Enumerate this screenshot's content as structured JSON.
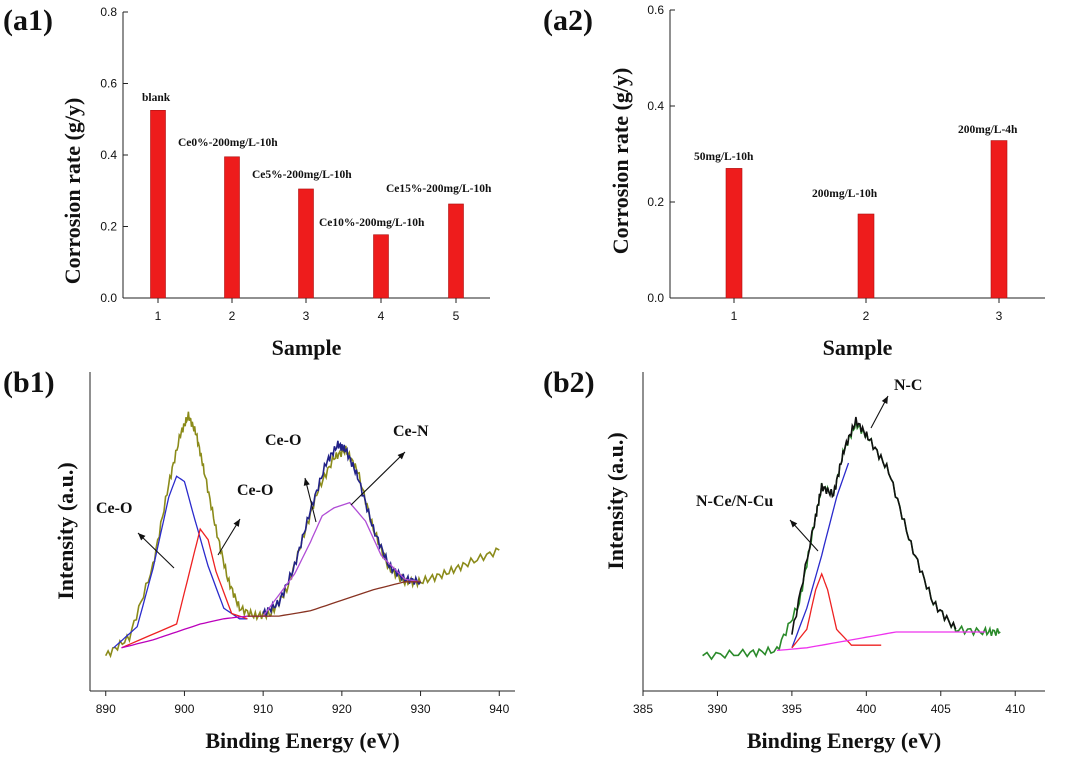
{
  "chart_data": [
    {
      "panel": "(a1)",
      "type": "bar",
      "xlabel": "Sample",
      "ylabel": "Corrosion rate (g/y)",
      "categories": [
        "1",
        "2",
        "3",
        "4",
        "5"
      ],
      "values": [
        0.525,
        0.395,
        0.305,
        0.177,
        0.263
      ],
      "bar_labels": [
        "blank",
        "Ce0%-200mg/L-10h",
        "Ce5%-200mg/L-10h",
        "Ce10%-200mg/L-10h",
        "Ce15%-200mg/L-10h"
      ],
      "ylim": [
        0,
        0.8
      ],
      "yticks": [
        "0.0",
        "0.2",
        "0.4",
        "0.6",
        "0.8"
      ],
      "color": "#ee1c1c"
    },
    {
      "panel": "(a2)",
      "type": "bar",
      "xlabel": "Sample",
      "ylabel": "Corrosion rate (g/y)",
      "categories": [
        "1",
        "2",
        "3"
      ],
      "values": [
        0.27,
        0.175,
        0.328
      ],
      "bar_labels": [
        "50mg/L-10h",
        "200mg/L-10h",
        "200mg/L-4h"
      ],
      "ylim": [
        0,
        0.6
      ],
      "yticks": [
        "0.0",
        "0.2",
        "0.4",
        "0.6"
      ],
      "color": "#ee1c1c"
    },
    {
      "panel": "(b1)",
      "type": "line",
      "xlabel": "Binding Energy (eV)",
      "ylabel": "Intensity (a.u.)",
      "xlim": [
        888,
        942
      ],
      "xticks": [
        "890",
        "900",
        "910",
        "920",
        "930",
        "940"
      ],
      "peak_labels": [
        "Ce-O",
        "Ce-O",
        "Ce-O",
        "Ce-N"
      ],
      "series": [
        {
          "color": "#8b8b1a",
          "x": [
            890,
            893,
            896,
            898,
            899.5,
            900.5,
            901.5,
            902.5,
            904,
            905.5,
            907,
            909,
            911,
            913,
            915,
            917,
            919,
            920.5,
            922,
            924,
            926,
            928,
            930,
            933,
            936,
            940
          ],
          "y": [
            0.02,
            0.09,
            0.36,
            0.67,
            0.86,
            0.93,
            0.86,
            0.72,
            0.5,
            0.31,
            0.2,
            0.17,
            0.18,
            0.27,
            0.46,
            0.65,
            0.77,
            0.8,
            0.72,
            0.5,
            0.35,
            0.3,
            0.3,
            0.33,
            0.37,
            0.42
          ]
        },
        {
          "color": "#222288",
          "x": [
            910,
            912,
            914,
            916,
            918,
            919.5,
            920.5,
            922,
            924,
            926,
            928,
            930
          ],
          "y": [
            0.18,
            0.22,
            0.36,
            0.57,
            0.75,
            0.82,
            0.8,
            0.7,
            0.5,
            0.36,
            0.31,
            0.3
          ]
        },
        {
          "color": "#2a2acc",
          "x": [
            891,
            894,
            896,
            898,
            899,
            900,
            901,
            903,
            905,
            907,
            908
          ],
          "y": [
            0.05,
            0.13,
            0.35,
            0.62,
            0.7,
            0.68,
            0.57,
            0.36,
            0.2,
            0.16,
            0.16
          ]
        },
        {
          "color": "#ee2222",
          "x": [
            892,
            899,
            901,
            902,
            903,
            904,
            906,
            908
          ],
          "y": [
            0.05,
            0.14,
            0.38,
            0.5,
            0.46,
            0.34,
            0.18,
            0.16
          ]
        },
        {
          "color": "#b04dd6",
          "x": [
            910,
            914,
            916,
            917.5,
            919,
            921,
            923,
            925,
            928,
            930
          ],
          "y": [
            0.17,
            0.33,
            0.45,
            0.55,
            0.58,
            0.6,
            0.53,
            0.4,
            0.31,
            0.3
          ]
        },
        {
          "color": "#bb00bb",
          "x": [
            892,
            896,
            899,
            902,
            905,
            908,
            911
          ],
          "y": [
            0.05,
            0.08,
            0.11,
            0.14,
            0.16,
            0.17,
            0.17
          ]
        },
        {
          "color": "#883322",
          "x": [
            908,
            912,
            916,
            920,
            924,
            928,
            930
          ],
          "y": [
            0.17,
            0.17,
            0.19,
            0.23,
            0.27,
            0.3,
            0.3
          ]
        }
      ]
    },
    {
      "panel": "(b2)",
      "type": "line",
      "xlabel": "Binding Energy (eV)",
      "ylabel": "Intensity (a.u.)",
      "xlim": [
        385,
        412
      ],
      "xticks": [
        "385",
        "390",
        "395",
        "400",
        "405",
        "410"
      ],
      "peak_labels": [
        "N-Ce/N-Cu",
        "N-C"
      ],
      "series": [
        {
          "color": "#2a8a2a",
          "x": [
            389,
            392,
            394,
            395.5,
            396.5,
            397,
            397.8,
            398.5,
            399.3,
            400.2,
            401.5,
            403,
            404.5,
            406,
            408,
            409
          ],
          "y": [
            0.02,
            0.03,
            0.04,
            0.22,
            0.52,
            0.66,
            0.63,
            0.8,
            0.9,
            0.84,
            0.72,
            0.44,
            0.22,
            0.12,
            0.11,
            0.11
          ]
        },
        {
          "color": "#111111",
          "x": [
            395,
            396.5,
            397,
            397.8,
            398.5,
            399.3,
            400.2,
            401.5,
            403,
            404.5,
            406
          ],
          "y": [
            0.1,
            0.52,
            0.66,
            0.63,
            0.8,
            0.91,
            0.84,
            0.72,
            0.44,
            0.22,
            0.12
          ]
        },
        {
          "color": "#2a2acc",
          "x": [
            395,
            396,
            397,
            398,
            398.8
          ],
          "y": [
            0.05,
            0.2,
            0.4,
            0.62,
            0.75
          ]
        },
        {
          "color": "#ee2222",
          "x": [
            395,
            396,
            396.6,
            397,
            397.4,
            398,
            399,
            401
          ],
          "y": [
            0.05,
            0.12,
            0.27,
            0.33,
            0.27,
            0.12,
            0.06,
            0.06
          ]
        },
        {
          "color": "#ee33ee",
          "x": [
            394,
            396,
            398,
            400,
            402,
            404,
            406,
            408
          ],
          "y": [
            0.04,
            0.05,
            0.07,
            0.09,
            0.11,
            0.11,
            0.11,
            0.11
          ]
        }
      ]
    }
  ]
}
